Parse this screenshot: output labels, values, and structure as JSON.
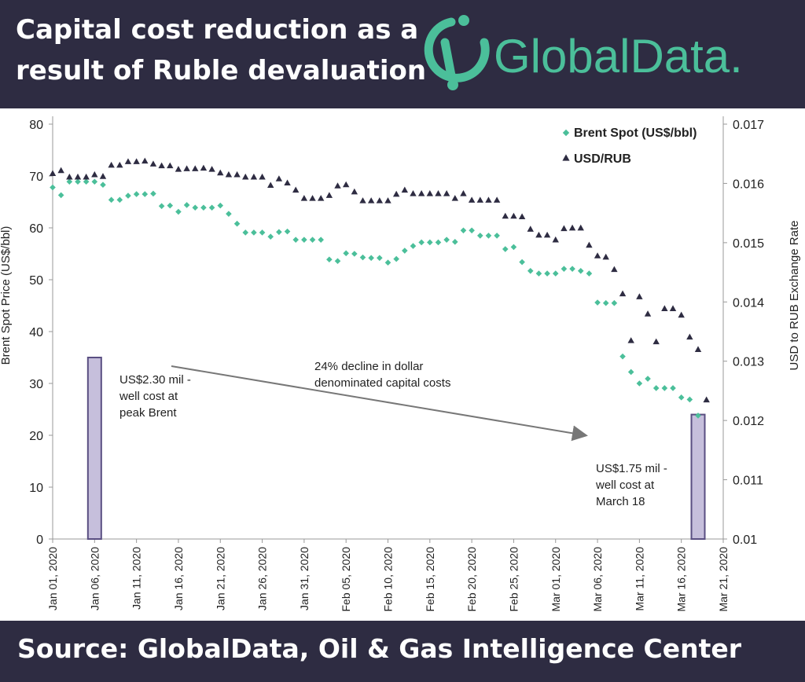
{
  "header": {
    "title_line1": "Capital cost reduction as a",
    "title_line2": "result of Ruble devaluation",
    "logo_text": "GlobalData."
  },
  "footer": {
    "source": "Source:  GlobalData, Oil & Gas Intelligence Center"
  },
  "colors": {
    "brent": "#4bbf9a",
    "usdrub": "#2e2c42",
    "header_bg": "#2e2c42",
    "bar_fill": "#c6bfdc",
    "bar_stroke": "#5a4f82",
    "arrow": "#777777"
  },
  "chart_data": {
    "type": "scatter",
    "x_tick_labels": [
      "Jan 01, 2020",
      "Jan 06, 2020",
      "Jan 11, 2020",
      "Jan 16, 2020",
      "Jan 21, 2020",
      "Jan 26, 2020",
      "Jan 31, 2020",
      "Feb 05, 2020",
      "Feb 10, 2020",
      "Feb 15, 2020",
      "Feb 20, 2020",
      "Feb 25, 2020",
      "Mar 01, 2020",
      "Mar 06, 2020",
      "Mar 11, 2020",
      "Mar 16, 2020",
      "Mar 21, 2020"
    ],
    "xlim": [
      "2020-01-01",
      "2020-03-21"
    ],
    "y_left": {
      "label": "Brent Spot Price (US$/bbl)",
      "ylim": [
        0,
        80
      ],
      "ticks": [
        "0",
        "10",
        "20",
        "30",
        "40",
        "50",
        "60",
        "70",
        "80"
      ]
    },
    "y_right": {
      "label": "USD to RUB Exchange Rate",
      "ylim": [
        0.01,
        0.017
      ],
      "ticks": [
        "0.01",
        "0.011",
        "0.012",
        "0.013",
        "0.014",
        "0.015",
        "0.016",
        "0.017"
      ]
    },
    "legend": {
      "position": "top-right",
      "entries": [
        "Brent Spot (US$/bbl)",
        "USD/RUB"
      ]
    },
    "series": [
      {
        "name": "Brent Spot (US$/bbl)",
        "axis": "left",
        "marker": "diamond",
        "points": [
          [
            "2020-01-01",
            67.8
          ],
          [
            "2020-01-02",
            66.3
          ],
          [
            "2020-01-03",
            68.9
          ],
          [
            "2020-01-04",
            68.9
          ],
          [
            "2020-01-05",
            68.9
          ],
          [
            "2020-01-06",
            68.9
          ],
          [
            "2020-01-07",
            68.3
          ],
          [
            "2020-01-08",
            65.4
          ],
          [
            "2020-01-09",
            65.4
          ],
          [
            "2020-01-10",
            66.2
          ],
          [
            "2020-01-11",
            66.5
          ],
          [
            "2020-01-12",
            66.5
          ],
          [
            "2020-01-13",
            66.6
          ],
          [
            "2020-01-14",
            64.2
          ],
          [
            "2020-01-15",
            64.3
          ],
          [
            "2020-01-16",
            63.1
          ],
          [
            "2020-01-17",
            64.4
          ],
          [
            "2020-01-18",
            63.9
          ],
          [
            "2020-01-19",
            63.9
          ],
          [
            "2020-01-20",
            63.9
          ],
          [
            "2020-01-21",
            64.3
          ],
          [
            "2020-01-22",
            62.7
          ],
          [
            "2020-01-23",
            60.8
          ],
          [
            "2020-01-24",
            59.1
          ],
          [
            "2020-01-25",
            59.1
          ],
          [
            "2020-01-26",
            59.1
          ],
          [
            "2020-01-27",
            58.3
          ],
          [
            "2020-01-28",
            59.2
          ],
          [
            "2020-01-29",
            59.3
          ],
          [
            "2020-01-30",
            57.7
          ],
          [
            "2020-01-31",
            57.7
          ],
          [
            "2020-02-01",
            57.7
          ],
          [
            "2020-02-02",
            57.7
          ],
          [
            "2020-02-03",
            53.9
          ],
          [
            "2020-02-04",
            53.6
          ],
          [
            "2020-02-05",
            55.1
          ],
          [
            "2020-02-06",
            55.0
          ],
          [
            "2020-02-07",
            54.3
          ],
          [
            "2020-02-08",
            54.2
          ],
          [
            "2020-02-09",
            54.2
          ],
          [
            "2020-02-10",
            53.3
          ],
          [
            "2020-02-11",
            54.0
          ],
          [
            "2020-02-12",
            55.6
          ],
          [
            "2020-02-13",
            56.5
          ],
          [
            "2020-02-14",
            57.2
          ],
          [
            "2020-02-15",
            57.2
          ],
          [
            "2020-02-16",
            57.2
          ],
          [
            "2020-02-17",
            57.7
          ],
          [
            "2020-02-18",
            57.3
          ],
          [
            "2020-02-19",
            59.5
          ],
          [
            "2020-02-20",
            59.5
          ],
          [
            "2020-02-21",
            58.5
          ],
          [
            "2020-02-22",
            58.5
          ],
          [
            "2020-02-23",
            58.5
          ],
          [
            "2020-02-24",
            55.9
          ],
          [
            "2020-02-25",
            56.3
          ],
          [
            "2020-02-26",
            53.4
          ],
          [
            "2020-02-27",
            51.7
          ],
          [
            "2020-02-28",
            51.2
          ],
          [
            "2020-02-29",
            51.2
          ],
          [
            "2020-03-01",
            51.2
          ],
          [
            "2020-03-02",
            52.1
          ],
          [
            "2020-03-03",
            52.1
          ],
          [
            "2020-03-04",
            51.7
          ],
          [
            "2020-03-05",
            51.2
          ],
          [
            "2020-03-06",
            45.6
          ],
          [
            "2020-03-07",
            45.5
          ],
          [
            "2020-03-08",
            45.5
          ],
          [
            "2020-03-09",
            35.2
          ],
          [
            "2020-03-10",
            32.2
          ],
          [
            "2020-03-11",
            30.0
          ],
          [
            "2020-03-12",
            30.9
          ],
          [
            "2020-03-13",
            29.1
          ],
          [
            "2020-03-14",
            29.1
          ],
          [
            "2020-03-15",
            29.1
          ],
          [
            "2020-03-16",
            27.3
          ],
          [
            "2020-03-17",
            26.9
          ],
          [
            "2020-03-18",
            23.8
          ]
        ]
      },
      {
        "name": "USD/RUB",
        "axis": "right",
        "marker": "triangle",
        "points": [
          [
            "2020-01-01",
            0.01617
          ],
          [
            "2020-01-02",
            0.01622
          ],
          [
            "2020-01-03",
            0.01611
          ],
          [
            "2020-01-04",
            0.01611
          ],
          [
            "2020-01-05",
            0.01611
          ],
          [
            "2020-01-06",
            0.01615
          ],
          [
            "2020-01-07",
            0.01612
          ],
          [
            "2020-01-08",
            0.01631
          ],
          [
            "2020-01-09",
            0.01631
          ],
          [
            "2020-01-10",
            0.01637
          ],
          [
            "2020-01-11",
            0.01637
          ],
          [
            "2020-01-12",
            0.01638
          ],
          [
            "2020-01-13",
            0.01633
          ],
          [
            "2020-01-14",
            0.0163
          ],
          [
            "2020-01-15",
            0.0163
          ],
          [
            "2020-01-16",
            0.01624
          ],
          [
            "2020-01-17",
            0.01625
          ],
          [
            "2020-01-18",
            0.01625
          ],
          [
            "2020-01-19",
            0.01626
          ],
          [
            "2020-01-20",
            0.01624
          ],
          [
            "2020-01-21",
            0.01618
          ],
          [
            "2020-01-22",
            0.01615
          ],
          [
            "2020-01-23",
            0.01615
          ],
          [
            "2020-01-24",
            0.01611
          ],
          [
            "2020-01-25",
            0.01611
          ],
          [
            "2020-01-26",
            0.01611
          ],
          [
            "2020-01-27",
            0.01597
          ],
          [
            "2020-01-28",
            0.01608
          ],
          [
            "2020-01-29",
            0.01601
          ],
          [
            "2020-01-30",
            0.01589
          ],
          [
            "2020-01-31",
            0.01575
          ],
          [
            "2020-02-01",
            0.01575
          ],
          [
            "2020-02-02",
            0.01575
          ],
          [
            "2020-02-03",
            0.0158
          ],
          [
            "2020-02-04",
            0.01596
          ],
          [
            "2020-02-05",
            0.01598
          ],
          [
            "2020-02-06",
            0.01586
          ],
          [
            "2020-02-07",
            0.01571
          ],
          [
            "2020-02-08",
            0.01571
          ],
          [
            "2020-02-09",
            0.01571
          ],
          [
            "2020-02-10",
            0.01571
          ],
          [
            "2020-02-11",
            0.01582
          ],
          [
            "2020-02-12",
            0.01589
          ],
          [
            "2020-02-13",
            0.01583
          ],
          [
            "2020-02-14",
            0.01583
          ],
          [
            "2020-02-15",
            0.01583
          ],
          [
            "2020-02-16",
            0.01583
          ],
          [
            "2020-02-17",
            0.01583
          ],
          [
            "2020-02-18",
            0.01575
          ],
          [
            "2020-02-19",
            0.01583
          ],
          [
            "2020-02-20",
            0.01572
          ],
          [
            "2020-02-21",
            0.01572
          ],
          [
            "2020-02-22",
            0.01572
          ],
          [
            "2020-02-23",
            0.01572
          ],
          [
            "2020-02-24",
            0.01545
          ],
          [
            "2020-02-25",
            0.01545
          ],
          [
            "2020-02-26",
            0.01544
          ],
          [
            "2020-02-27",
            0.01523
          ],
          [
            "2020-02-28",
            0.01513
          ],
          [
            "2020-02-29",
            0.01513
          ],
          [
            "2020-03-01",
            0.01505
          ],
          [
            "2020-03-02",
            0.01524
          ],
          [
            "2020-03-03",
            0.01525
          ],
          [
            "2020-03-04",
            0.01525
          ],
          [
            "2020-03-05",
            0.01496
          ],
          [
            "2020-03-06",
            0.01478
          ],
          [
            "2020-03-07",
            0.01476
          ],
          [
            "2020-03-08",
            0.01455
          ],
          [
            "2020-03-09",
            0.01414
          ],
          [
            "2020-03-10",
            0.01335
          ],
          [
            "2020-03-11",
            0.01409
          ],
          [
            "2020-03-12",
            0.0138
          ],
          [
            "2020-03-13",
            0.01333
          ],
          [
            "2020-03-14",
            0.01389
          ],
          [
            "2020-03-15",
            0.01389
          ],
          [
            "2020-03-16",
            0.01378
          ],
          [
            "2020-03-17",
            0.01341
          ],
          [
            "2020-03-18",
            0.0132
          ],
          [
            "2020-03-19",
            0.01235
          ]
        ]
      }
    ],
    "bars": [
      {
        "date": "2020-01-06",
        "value": 35
      },
      {
        "date": "2020-03-18",
        "value": 24
      }
    ],
    "annotations": {
      "peak_line1": "US$2.30 mil -",
      "peak_line2": "well cost at",
      "peak_line3": "peak Brent",
      "decline_line1": "24% decline in dollar",
      "decline_line2": "denominated capital costs",
      "march_line1": "US$1.75 mil -",
      "march_line2": "well cost at",
      "march_line3": "March 18"
    }
  }
}
